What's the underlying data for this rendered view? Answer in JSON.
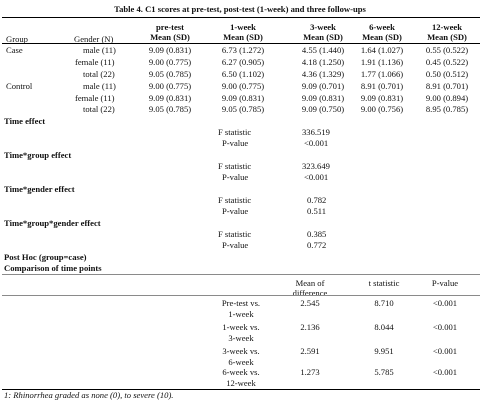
{
  "title": "Table 4. C1 scores at pre-test, post-test (1-week) and three follow-ups",
  "header": {
    "group": "Group",
    "gender": "Gender (N)",
    "cols": [
      {
        "top": "pre-test",
        "bottom": "Mean (SD)"
      },
      {
        "top": "1-week",
        "bottom": "Mean (SD)"
      },
      {
        "top": "3-week",
        "bottom": "Mean (SD)"
      },
      {
        "top": "6-week",
        "bottom": "Mean (SD)"
      },
      {
        "top": "12-week",
        "bottom": "Mean (SD)"
      }
    ]
  },
  "rows": [
    {
      "group": "Case",
      "gender": "male (11)",
      "v": [
        "9.09 (0.831)",
        "6.73 (1.272)",
        "4.55 (1.440)",
        "1.64 (1.027)",
        "0.55 (0.522)"
      ]
    },
    {
      "group": "",
      "gender": "female (11)",
      "v": [
        "9.00 (0.775)",
        "6.27 (0.905)",
        "4.18 (1.250)",
        "1.91 (1.136)",
        "0.45 (0.522)"
      ]
    },
    {
      "group": "",
      "gender": "total (22)",
      "v": [
        "9.05 (0.785)",
        "6.50 (1.102)",
        "4.36 (1.329)",
        "1.77 (1.066)",
        "0.50 (0.512)"
      ]
    },
    {
      "group": "Control",
      "gender": "male (11)",
      "v": [
        "9.00 (0.775)",
        "9.00 (0.775)",
        "9.09 (0.701)",
        "8.91 (0.701)",
        "8.91 (0.701)"
      ]
    },
    {
      "group": "",
      "gender": "female (11)",
      "v": [
        "9.09 (0.831)",
        "9.09 (0.831)",
        "9.09 (0.831)",
        "9.09 (0.831)",
        "9.00 (0.894)"
      ]
    },
    {
      "group": "",
      "gender": "total (22)",
      "v": [
        "9.05 (0.785)",
        "9.05 (0.785)",
        "9.09 (0.750)",
        "9.00 (0.756)",
        "8.95 (0.785)"
      ]
    }
  ],
  "effects": [
    {
      "name": "Time effect",
      "f_label": "F statistic",
      "f": "336.519",
      "p_label": "P-value",
      "p": "<0.001"
    },
    {
      "name": "Time*group effect",
      "f_label": "F statistic",
      "f": "323.649",
      "p_label": "P-value",
      "p": "<0.001"
    },
    {
      "name": "Time*gender effect",
      "f_label": "F statistic",
      "f": "0.782",
      "p_label": "P-value",
      "p": "0.511"
    },
    {
      "name": "Time*group*gender effect",
      "f_label": "F statistic",
      "f": "0.385",
      "p_label": "P-value",
      "p": "0.772"
    }
  ],
  "posthoc": {
    "title1": "Post Hoc (group=case)",
    "title2": "Comparison of time points",
    "col_mean": "Mean of difference",
    "col_t": "t statistic",
    "col_p": "P-value",
    "rows": [
      {
        "l1": "Pre-test vs.",
        "l2": "1-week",
        "mean": "2.545",
        "t": "8.710",
        "p": "<0.001"
      },
      {
        "l1": "1-week vs.",
        "l2": "3-week",
        "mean": "2.136",
        "t": "8.044",
        "p": "<0.001"
      },
      {
        "l1": "3-week vs.",
        "l2": "6-week",
        "mean": "2.591",
        "t": "9.951",
        "p": "<0.001"
      },
      {
        "l1": "6-week vs.",
        "l2": "12-week",
        "mean": "1.273",
        "t": "5.785",
        "p": "<0.001"
      }
    ]
  },
  "footnote": "1: Rhinorrhea graded as none (0), to severe (10)."
}
